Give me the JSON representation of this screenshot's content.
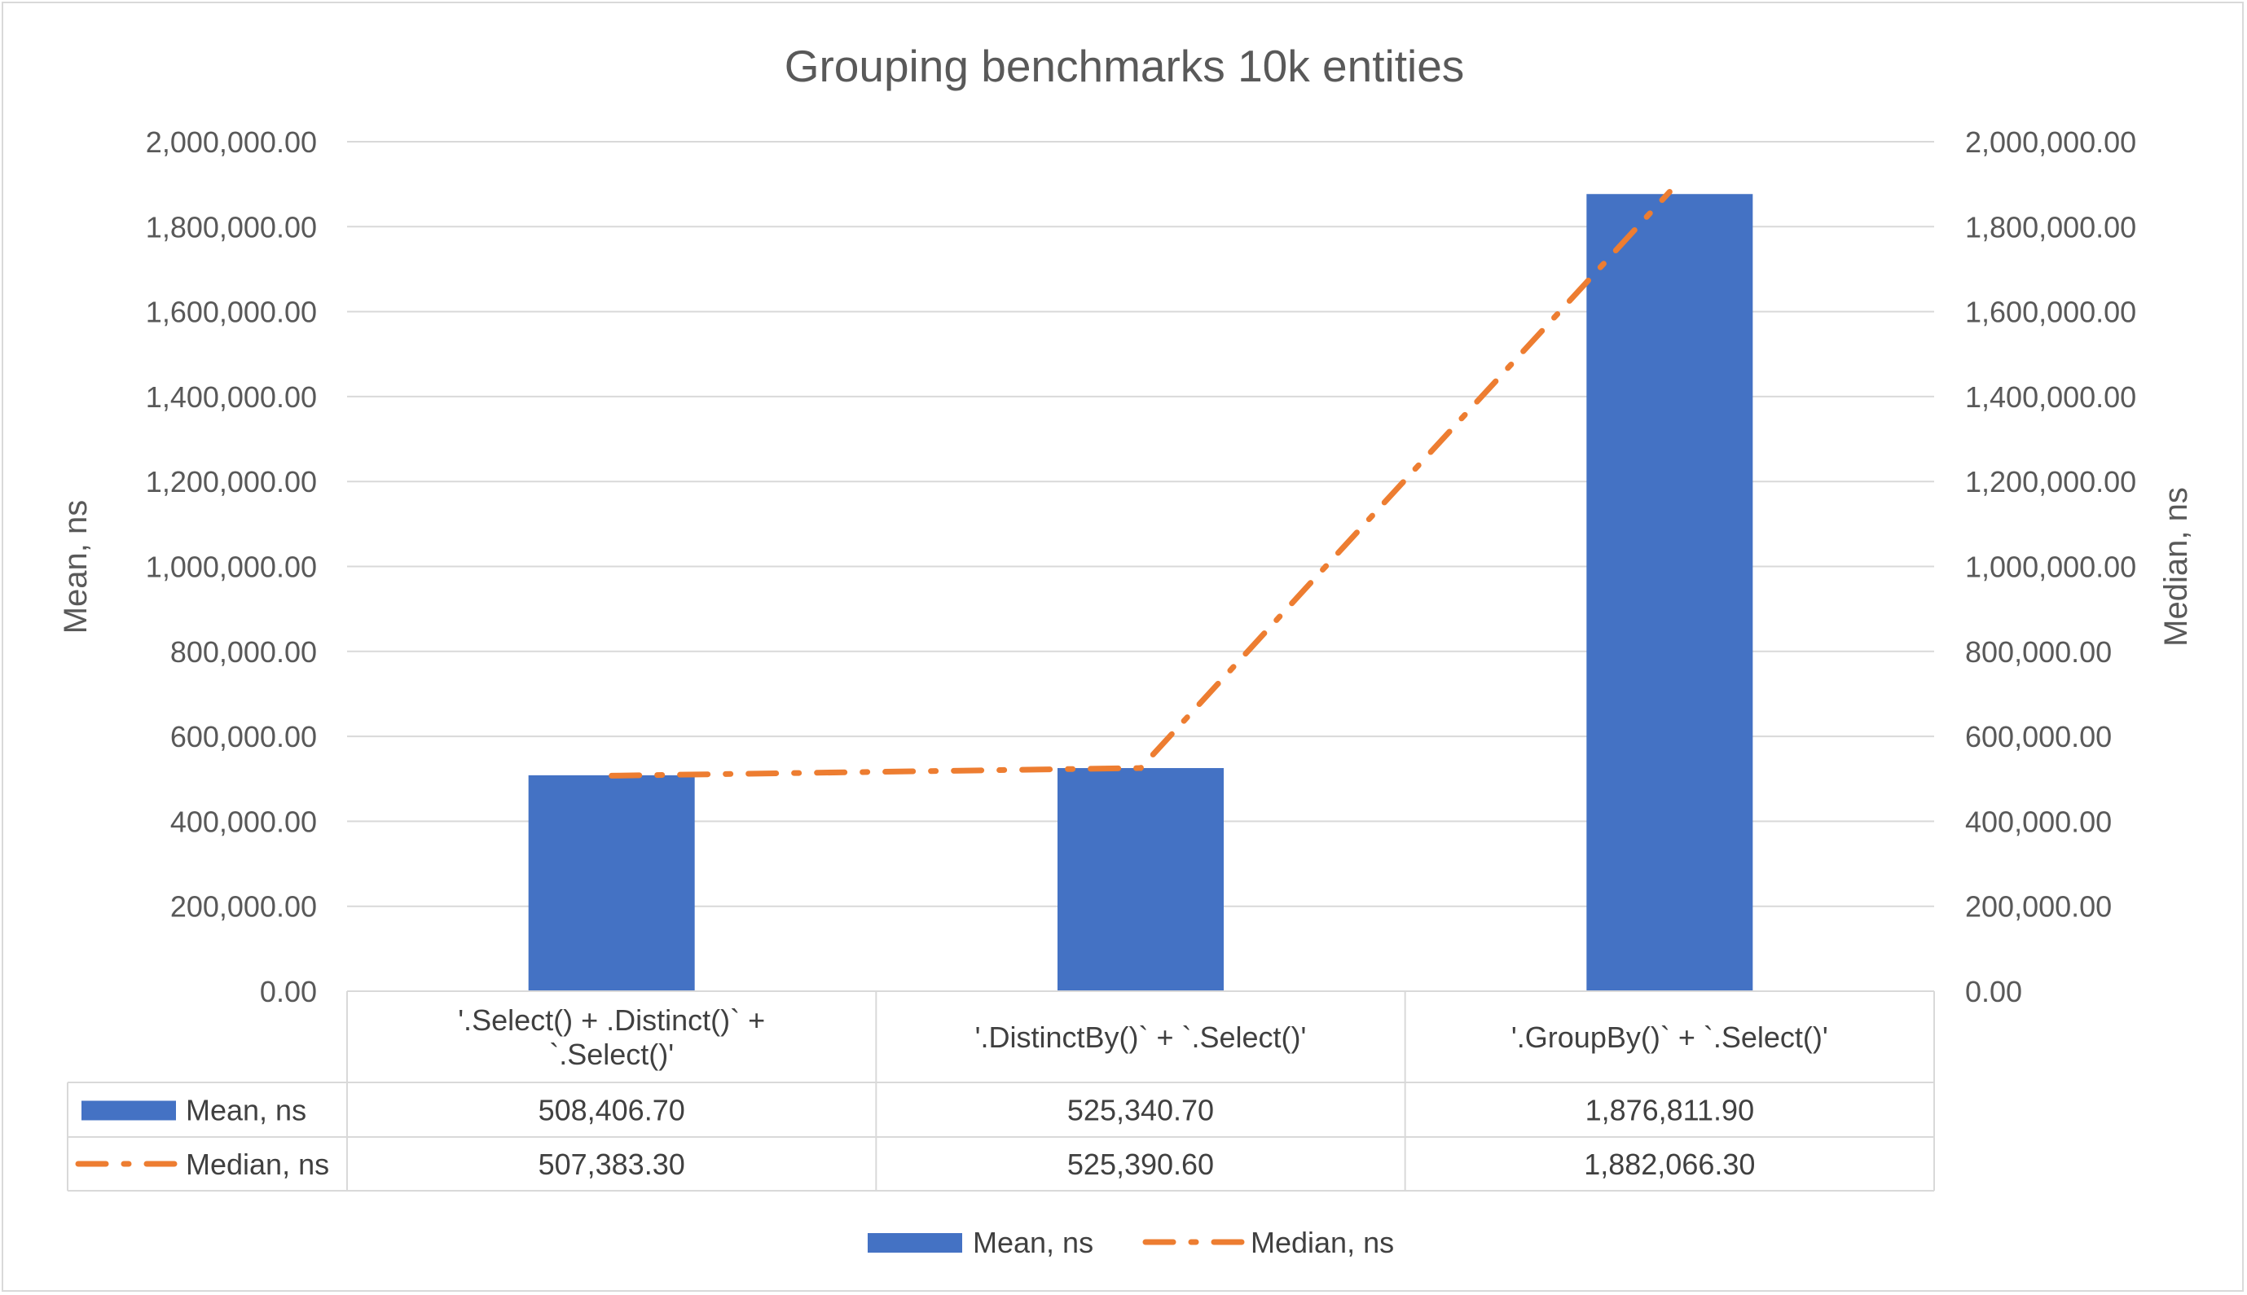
{
  "chart_data": {
    "type": "bar",
    "title": "Grouping benchmarks 10k entities",
    "categories": [
      "'.Select() + .Distinct()` + `.Select()'",
      "'.DistinctBy()` + `.Select()'",
      "'.GroupBy()` + `.Select()'"
    ],
    "category_lines": [
      [
        "'.Select() + .Distinct()` +",
        "`.Select()'"
      ],
      [
        "'.DistinctBy()` + `.Select()'"
      ],
      [
        "'.GroupBy()` + `.Select()'"
      ]
    ],
    "series": [
      {
        "name": "Mean, ns",
        "type": "bar",
        "axis": "left",
        "color": "#4472c4",
        "values": [
          508406.7,
          525340.7,
          1876811.9
        ],
        "labels": [
          "508,406.70",
          "525,340.70",
          "1,876,811.90"
        ]
      },
      {
        "name": "Median, ns",
        "type": "line",
        "axis": "right",
        "color": "#ed7d31",
        "line_style": "dash-dot",
        "values": [
          507383.3,
          525390.6,
          1882066.3
        ],
        "labels": [
          "507,383.30",
          "525,390.60",
          "1,882,066.30"
        ]
      }
    ],
    "ylabel_left": "Mean, ns",
    "ylabel_right": "Median, ns",
    "ylim": [
      0,
      2000000
    ],
    "yticks": [
      0,
      200000,
      400000,
      600000,
      800000,
      1000000,
      1200000,
      1400000,
      1600000,
      1800000,
      2000000
    ],
    "ytick_labels": [
      "0.00",
      "200,000.00",
      "400,000.00",
      "600,000.00",
      "800,000.00",
      "1,000,000.00",
      "1,200,000.00",
      "1,400,000.00",
      "1,600,000.00",
      "1,800,000.00",
      "2,000,000.00"
    ],
    "grid": true,
    "data_table": true,
    "legend_position": "bottom"
  }
}
